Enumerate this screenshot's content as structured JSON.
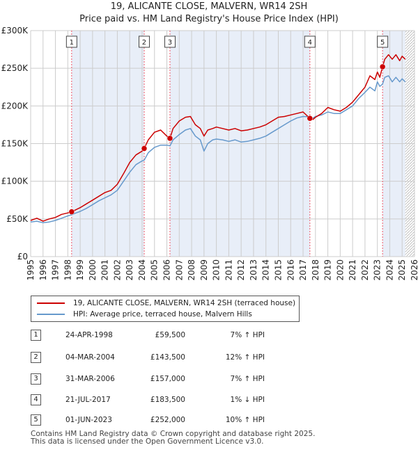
{
  "title_line1": "19, ALICANTE CLOSE, MALVERN, WR14 2SH",
  "title_line2": "Price paid vs. HM Land Registry's House Price Index (HPI)",
  "legend": {
    "property_label": "19, ALICANTE CLOSE, MALVERN, WR14 2SH (terraced house)",
    "hpi_label": "HPI: Average price, terraced house, Malvern Hills"
  },
  "colors": {
    "property": "#cc0000",
    "hpi": "#6699cc",
    "shade": "#e8eef8",
    "grid": "#cccccc",
    "vline": "#ee5566",
    "hatch": "#999999"
  },
  "transactions": [
    {
      "num": "1",
      "date": "24-APR-1998",
      "price": "£59,500",
      "hpi": "7% ↑ HPI"
    },
    {
      "num": "2",
      "date": "04-MAR-2004",
      "price": "£143,500",
      "hpi": "12% ↑ HPI"
    },
    {
      "num": "3",
      "date": "31-MAR-2006",
      "price": "£157,000",
      "hpi": "7% ↑ HPI"
    },
    {
      "num": "4",
      "date": "21-JUL-2017",
      "price": "£183,500",
      "hpi": "1% ↓ HPI"
    },
    {
      "num": "5",
      "date": "01-JUN-2023",
      "price": "£252,000",
      "hpi": "10% ↑ HPI"
    }
  ],
  "footer_line1": "Contains HM Land Registry data © Crown copyright and database right 2025.",
  "footer_line2": "This data is licensed under the Open Government Licence v3.0.",
  "chart_data": {
    "type": "line",
    "xlim": [
      1995,
      2026
    ],
    "ylim": [
      0,
      300000
    ],
    "y_ticks": [
      0,
      50000,
      100000,
      150000,
      200000,
      250000,
      300000
    ],
    "y_tick_labels": [
      "£0",
      "£50K",
      "£100K",
      "£150K",
      "£200K",
      "£250K",
      "£300K"
    ],
    "x_ticks": [
      1995,
      1996,
      1997,
      1998,
      1999,
      2000,
      2001,
      2002,
      2003,
      2004,
      2005,
      2006,
      2007,
      2008,
      2009,
      2010,
      2011,
      2012,
      2013,
      2014,
      2015,
      2016,
      2017,
      2018,
      2019,
      2020,
      2021,
      2022,
      2023,
      2024,
      2025,
      2026
    ],
    "x_tick_labels": [
      "1995",
      "1996",
      "1997",
      "1998",
      "1999",
      "2000",
      "2001",
      "2002",
      "2003",
      "2004",
      "2005",
      "2006",
      "2007",
      "2008",
      "2009",
      "2010",
      "2011",
      "2012",
      "2013",
      "2014",
      "2015",
      "2016",
      "2017",
      "2018",
      "2019",
      "2020",
      "2021",
      "2022",
      "2023",
      "2024",
      "2025",
      "2026"
    ],
    "shaded_ranges": [
      [
        1998.31,
        2004.17
      ],
      [
        2006.25,
        2017.55
      ],
      [
        2023.42,
        2025.25
      ]
    ],
    "hatched_after": 2025.25,
    "sales": [
      {
        "num": "1",
        "x": 1998.31,
        "y": 59500
      },
      {
        "num": "2",
        "x": 2004.17,
        "y": 143500
      },
      {
        "num": "3",
        "x": 2006.25,
        "y": 157000
      },
      {
        "num": "4",
        "x": 2017.55,
        "y": 183500
      },
      {
        "num": "5",
        "x": 2023.42,
        "y": 252000
      }
    ],
    "series": [
      {
        "name": "19, ALICANTE CLOSE, MALVERN, WR14 2SH (terraced house)",
        "x": [
          1995.0,
          1995.5,
          1996.0,
          1996.5,
          1997.0,
          1997.5,
          1998.0,
          1998.31,
          1998.5,
          1999.0,
          1999.5,
          2000.0,
          2000.5,
          2001.0,
          2001.5,
          2002.0,
          2002.5,
          2003.0,
          2003.5,
          2004.0,
          2004.17,
          2004.5,
          2005.0,
          2005.5,
          2006.0,
          2006.25,
          2006.5,
          2007.0,
          2007.5,
          2007.9,
          2008.3,
          2008.7,
          2009.0,
          2009.3,
          2009.7,
          2010.0,
          2010.5,
          2011.0,
          2011.5,
          2012.0,
          2012.5,
          2013.0,
          2013.5,
          2014.0,
          2014.5,
          2015.0,
          2015.5,
          2016.0,
          2016.5,
          2017.0,
          2017.55,
          2017.8,
          2018.0,
          2018.5,
          2019.0,
          2019.5,
          2020.0,
          2020.5,
          2021.0,
          2021.5,
          2022.0,
          2022.4,
          2022.8,
          2023.0,
          2023.2,
          2023.42,
          2023.6,
          2023.9,
          2024.2,
          2024.5,
          2024.8,
          2025.0,
          2025.25
        ],
        "values": [
          48000,
          51000,
          47000,
          50000,
          52000,
          56000,
          58000,
          59500,
          61000,
          65000,
          70000,
          75000,
          80000,
          85000,
          88000,
          96000,
          110000,
          125000,
          135000,
          140000,
          143500,
          155000,
          165000,
          168000,
          160000,
          157000,
          170000,
          180000,
          185000,
          186000,
          175000,
          170000,
          160000,
          168000,
          170000,
          172000,
          170000,
          168000,
          170000,
          167000,
          168000,
          170000,
          172000,
          175000,
          180000,
          185000,
          186000,
          188000,
          190000,
          192000,
          183500,
          182000,
          185000,
          190000,
          198000,
          195000,
          193000,
          198000,
          205000,
          215000,
          225000,
          240000,
          235000,
          245000,
          238000,
          252000,
          262000,
          268000,
          262000,
          268000,
          260000,
          266000,
          262000
        ]
      },
      {
        "name": "HPI: Average price, terraced house, Malvern Hills",
        "x": [
          1995.0,
          1995.5,
          1996.0,
          1996.5,
          1997.0,
          1997.5,
          1998.0,
          1998.31,
          1998.5,
          1999.0,
          1999.5,
          2000.0,
          2000.5,
          2001.0,
          2001.5,
          2002.0,
          2002.5,
          2003.0,
          2003.5,
          2004.0,
          2004.17,
          2004.5,
          2005.0,
          2005.5,
          2006.0,
          2006.25,
          2006.5,
          2007.0,
          2007.5,
          2007.9,
          2008.3,
          2008.7,
          2009.0,
          2009.3,
          2009.7,
          2010.0,
          2010.5,
          2011.0,
          2011.5,
          2012.0,
          2012.5,
          2013.0,
          2013.5,
          2014.0,
          2014.5,
          2015.0,
          2015.5,
          2016.0,
          2016.5,
          2017.0,
          2017.55,
          2017.8,
          2018.0,
          2018.5,
          2019.0,
          2019.5,
          2020.0,
          2020.5,
          2021.0,
          2021.5,
          2022.0,
          2022.4,
          2022.8,
          2023.0,
          2023.2,
          2023.42,
          2023.6,
          2023.9,
          2024.2,
          2024.5,
          2024.8,
          2025.0,
          2025.25
        ],
        "values": [
          46000,
          47000,
          45000,
          46000,
          48000,
          51000,
          54000,
          55500,
          57000,
          60000,
          64000,
          69000,
          74000,
          78000,
          82000,
          88000,
          100000,
          112000,
          122000,
          127000,
          128000,
          138000,
          145000,
          148000,
          148000,
          147000,
          155000,
          162000,
          168000,
          170000,
          160000,
          155000,
          140000,
          150000,
          155000,
          156000,
          155000,
          153000,
          155000,
          152000,
          153000,
          155000,
          157000,
          160000,
          165000,
          170000,
          175000,
          180000,
          184000,
          186000,
          185500,
          184000,
          186000,
          188000,
          192000,
          190000,
          190000,
          195000,
          200000,
          210000,
          218000,
          225000,
          220000,
          232000,
          226000,
          229000,
          238000,
          240000,
          232000,
          238000,
          232000,
          236000,
          232000
        ]
      }
    ]
  }
}
